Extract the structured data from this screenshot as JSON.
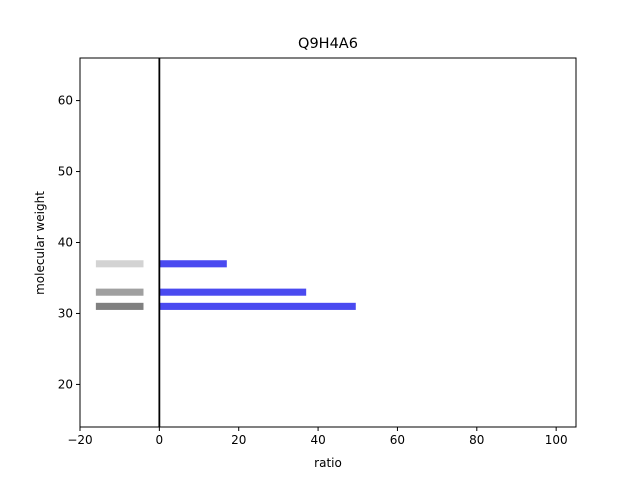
{
  "chart_data": {
    "type": "bar",
    "title": "Q9H4A6",
    "xlabel": "ratio",
    "ylabel": "molecular weight",
    "xlim": [
      -20,
      105
    ],
    "ylim": [
      14,
      66
    ],
    "xticks": [
      -20,
      0,
      20,
      40,
      60,
      80,
      100
    ],
    "yticks": [
      20,
      30,
      40,
      50,
      60
    ],
    "grid": false,
    "reference_line_x": 0,
    "bar_thickness": 1.0,
    "marker_bars": [
      {
        "y": 37,
        "x_start": -16,
        "x_end": -4,
        "color": "#d3d3d3"
      },
      {
        "y": 33,
        "x_start": -16,
        "x_end": -4,
        "color": "#a0a0a0"
      },
      {
        "y": 31,
        "x_start": -16,
        "x_end": -4,
        "color": "#808080"
      }
    ],
    "series": [
      {
        "color": "#4a4af0",
        "points": [
          {
            "y": 37,
            "value": 17
          },
          {
            "y": 33,
            "value": 37
          },
          {
            "y": 31,
            "value": 49.5
          }
        ]
      }
    ]
  }
}
